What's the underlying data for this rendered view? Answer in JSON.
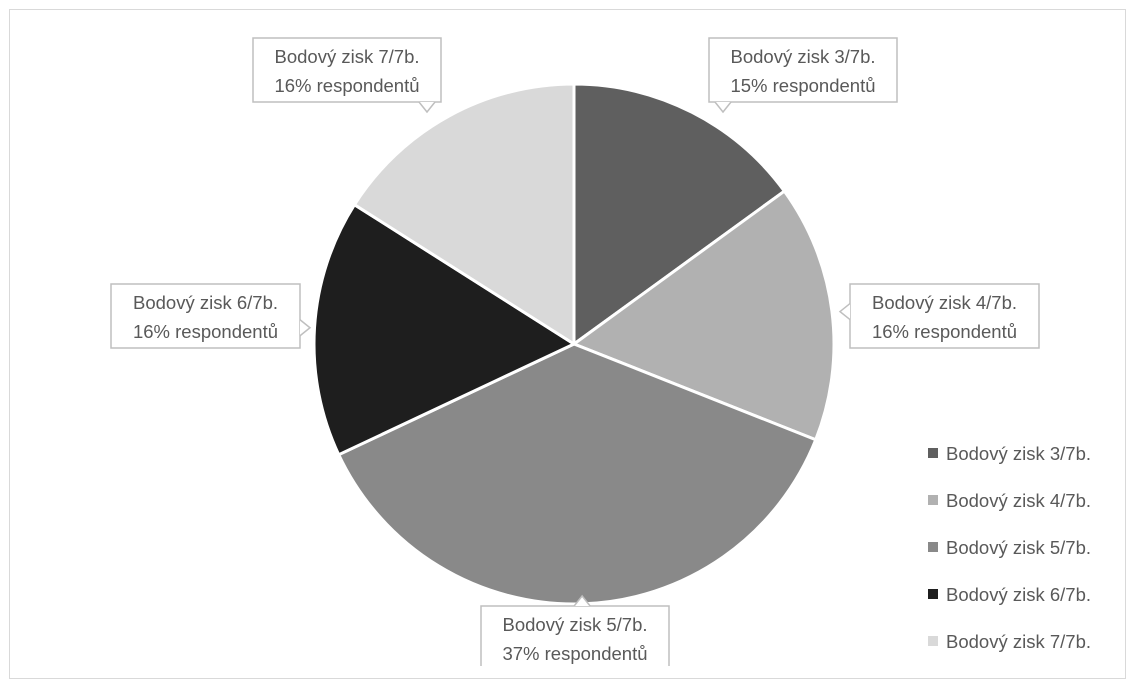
{
  "chart_data": {
    "type": "pie",
    "title": "",
    "legend_position": "right-bottom",
    "slices": [
      {
        "label": "Bodový zisk 3/7b.",
        "value": 15,
        "color": "#5f5f5f",
        "callout_line1": "Bodový zisk 3/7b.",
        "callout_line2": "15% respondentů"
      },
      {
        "label": "Bodový zisk 4/7b.",
        "value": 16,
        "color": "#b1b1b1",
        "callout_line1": "Bodový zisk 4/7b.",
        "callout_line2": "16% respondentů"
      },
      {
        "label": "Bodový zisk 5/7b.",
        "value": 37,
        "color": "#898989",
        "callout_line1": "Bodový zisk 5/7b.",
        "callout_line2": "37% respondentů"
      },
      {
        "label": "Bodový zisk 6/7b.",
        "value": 16,
        "color": "#1e1e1e",
        "callout_line1": "Bodový zisk 6/7b.",
        "callout_line2": "16% respondentů"
      },
      {
        "label": "Bodový zisk 7/7b.",
        "value": 16,
        "color": "#d9d9d9",
        "callout_line1": "Bodový zisk 7/7b.",
        "callout_line2": "16% respondentů"
      }
    ]
  }
}
